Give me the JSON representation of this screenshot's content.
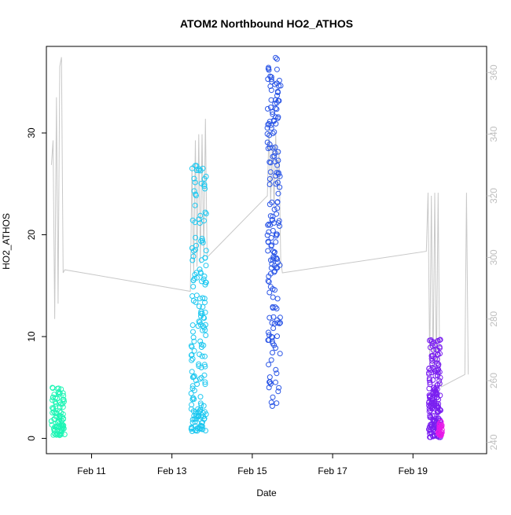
{
  "chart_data": {
    "type": "scatter",
    "title": "ATOM2 Northbound HO2_ATHOS",
    "xlabel": "Date",
    "ylabel": "HO2_ATHOS",
    "xlim": [
      "2017-02-09 21:00",
      "2017-02-20 20:00"
    ],
    "ylim": [
      -1.5,
      38.5
    ],
    "y2lim": [
      236.3,
      368.5
    ],
    "x_ticks": [
      {
        "value": "2017-02-11",
        "label": "Feb 11"
      },
      {
        "value": "2017-02-13",
        "label": "Feb 13"
      },
      {
        "value": "2017-02-15",
        "label": "Feb 15"
      },
      {
        "value": "2017-02-17",
        "label": "Feb 17"
      },
      {
        "value": "2017-02-19",
        "label": "Feb 19"
      }
    ],
    "y_ticks": [
      0,
      10,
      20,
      30
    ],
    "y2_ticks": [
      240,
      260,
      280,
      300,
      320,
      340,
      360
    ],
    "grid": false,
    "clusters": [
      {
        "start": "2017-02-10 00:00",
        "end": "2017-02-10 08:00",
        "y_min": 0.3,
        "y_max": 5.0,
        "color": "#1EF5B5"
      },
      {
        "start": "2017-02-13 11:30",
        "end": "2017-02-13 20:30",
        "y_min": 0.7,
        "y_max": 27.0,
        "color": "#1EC8F0"
      },
      {
        "start": "2017-02-15 09:00",
        "end": "2017-02-15 17:00",
        "y_min": 3.0,
        "y_max": 37.5,
        "color": "#2A55E6"
      },
      {
        "start": "2017-02-19 09:30",
        "end": "2017-02-19 16:30",
        "y_min": 0.1,
        "y_max": 9.7,
        "color": "#7A1FF0"
      },
      {
        "start": "2017-02-19 15:00",
        "end": "2017-02-19 17:30",
        "y_min": 0.3,
        "y_max": 1.7,
        "color": "#E81AE8"
      }
    ],
    "secondary_line": {
      "color": "#C8C8C8",
      "points": [
        [
          "2017-02-10 00:00",
          330
        ],
        [
          "2017-02-10 01:00",
          338
        ],
        [
          "2017-02-10 02:00",
          280
        ],
        [
          "2017-02-10 03:00",
          352
        ],
        [
          "2017-02-10 04:00",
          285
        ],
        [
          "2017-02-10 05:00",
          362
        ],
        [
          "2017-02-10 06:00",
          365
        ],
        [
          "2017-02-10 07:00",
          295
        ],
        [
          "2017-02-10 08:00",
          296
        ],
        [
          "2017-02-13 11:00",
          289
        ],
        [
          "2017-02-13 12:00",
          330
        ],
        [
          "2017-02-13 13:00",
          295
        ],
        [
          "2017-02-13 14:00",
          338
        ],
        [
          "2017-02-13 15:00",
          297
        ],
        [
          "2017-02-13 16:00",
          340
        ],
        [
          "2017-02-13 17:00",
          298
        ],
        [
          "2017-02-13 18:00",
          340
        ],
        [
          "2017-02-13 19:00",
          300
        ],
        [
          "2017-02-13 20:00",
          345
        ],
        [
          "2017-02-13 21:00",
          300
        ],
        [
          "2017-02-15 09:00",
          320
        ],
        [
          "2017-02-15 10:00",
          342
        ],
        [
          "2017-02-15 11:00",
          318
        ],
        [
          "2017-02-15 12:00",
          337
        ],
        [
          "2017-02-15 13:00",
          316
        ],
        [
          "2017-02-15 14:00",
          340
        ],
        [
          "2017-02-15 15:00",
          322
        ],
        [
          "2017-02-15 16:00",
          335
        ],
        [
          "2017-02-15 17:00",
          299
        ],
        [
          "2017-02-15 18:00",
          295
        ],
        [
          "2017-02-19 08:00",
          302
        ],
        [
          "2017-02-19 09:00",
          321
        ],
        [
          "2017-02-19 10:00",
          265
        ],
        [
          "2017-02-19 11:00",
          320
        ],
        [
          "2017-02-19 12:00",
          264
        ],
        [
          "2017-02-19 13:00",
          321
        ],
        [
          "2017-02-19 14:00",
          262
        ],
        [
          "2017-02-19 15:00",
          321
        ],
        [
          "2017-02-19 16:00",
          261
        ],
        [
          "2017-02-19 17:00",
          258
        ],
        [
          "2017-02-20 07:00",
          262
        ],
        [
          "2017-02-20 08:00",
          321
        ],
        [
          "2017-02-20 09:00",
          262
        ]
      ]
    }
  }
}
